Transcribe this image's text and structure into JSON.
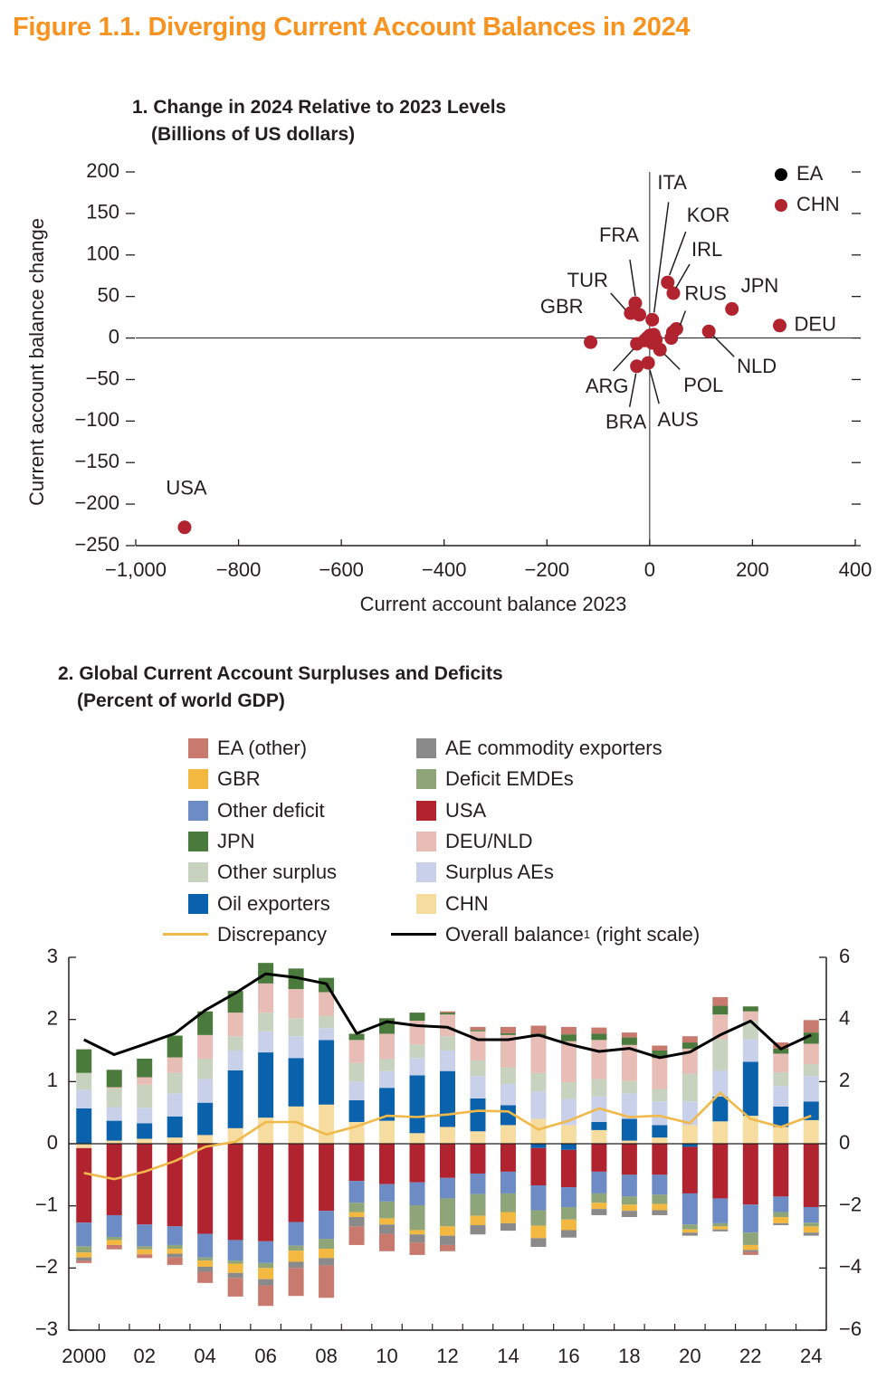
{
  "figure_title": "Figure 1.1. Diverging Current Account Balances in 2024",
  "colors": {
    "title": "#f7931e",
    "ea": "#000000",
    "chn_marker": "#b1232f",
    "EA (other)": "#c97a6e",
    "GBR": "#f2b840",
    "Other deficit": "#6d8cc6",
    "JPN": "#4a7a3c",
    "Other surplus": "#c8d3bf",
    "Oil exporters": "#0a62ac",
    "AE commodity exporters": "#8a8a8a",
    "Deficit EMDEs": "#8ea57a",
    "USA": "#b1232f",
    "DEU/NLD": "#e8bdb5",
    "Surplus AEs": "#c9d1ea",
    "CHN": "#f7dca0",
    "Discrepancy": "#f0b94a",
    "Overall balance": "#000000"
  },
  "panel1": {
    "title_line1": "1. Change in 2024 Relative to 2023 Levels",
    "title_line2": "(Billions of US dollars)"
  },
  "panel2": {
    "title_line1": "2. Global Current Account Surpluses and Deficits",
    "title_line2": "(Percent of world GDP)",
    "legend": [
      {
        "label": "EA (other)",
        "kind": "box"
      },
      {
        "label": "AE commodity exporters",
        "kind": "box"
      },
      {
        "label": "GBR",
        "kind": "box"
      },
      {
        "label": "Deficit EMDEs",
        "kind": "box"
      },
      {
        "label": "Other deficit",
        "kind": "box"
      },
      {
        "label": "USA",
        "kind": "box"
      },
      {
        "label": "JPN",
        "kind": "box"
      },
      {
        "label": "DEU/NLD",
        "kind": "box"
      },
      {
        "label": "Other surplus",
        "kind": "box"
      },
      {
        "label": "Surplus AEs",
        "kind": "box"
      },
      {
        "label": "Oil exporters",
        "kind": "box"
      },
      {
        "label": "CHN",
        "kind": "box"
      },
      {
        "label": "Discrepancy",
        "kind": "line"
      },
      {
        "label": "Overall balance",
        "kind": "line",
        "superscript": "1",
        "suffix": " (right scale)"
      }
    ]
  },
  "chart_data": [
    {
      "type": "scatter",
      "title": "1. Change in 2024 Relative to 2023 Levels",
      "subtitle": "(Billions of US dollars)",
      "xlabel": "Current account balance 2023",
      "ylabel": "Current account balance change",
      "xlim": [
        -1000,
        400
      ],
      "ylim": [
        -250,
        200
      ],
      "xticks": [
        -1000,
        -800,
        -600,
        -400,
        -200,
        0,
        200,
        400
      ],
      "xtick_labels": [
        "−1,000",
        "−800",
        "−600",
        "−400",
        "−200",
        "0",
        "200",
        "400"
      ],
      "yticks": [
        200,
        150,
        100,
        50,
        0,
        -50,
        -100,
        -150,
        -200,
        -250
      ],
      "ytick_labels": [
        "200",
        "150",
        "100",
        "50",
        "0",
        "−50",
        "−100",
        "−150",
        "−200",
        "−250"
      ],
      "legend": [
        "EA",
        "CHN"
      ],
      "legend_position": "top-right",
      "points": [
        {
          "label": "USA",
          "x": -905,
          "y": -228
        },
        {
          "label": "GBR",
          "x": -115,
          "y": -5
        },
        {
          "label": "FRA",
          "x": -28,
          "y": 42
        },
        {
          "label": "TUR",
          "x": -37,
          "y": 30
        },
        {
          "label": "ITA",
          "x": 5,
          "y": 22
        },
        {
          "label": "KOR",
          "x": 35,
          "y": 67
        },
        {
          "label": "IRL",
          "x": 46,
          "y": 54
        },
        {
          "label": "RUS",
          "x": 52,
          "y": 11
        },
        {
          "label": "JPN",
          "x": 160,
          "y": 35
        },
        {
          "label": "DEU",
          "x": 253,
          "y": 15
        },
        {
          "label": "NLD",
          "x": 115,
          "y": 8
        },
        {
          "label": "POL",
          "x": 20,
          "y": -14
        },
        {
          "label": "ARG",
          "x": -25,
          "y": -7
        },
        {
          "label": "BRA",
          "x": -25,
          "y": -34
        },
        {
          "label": "AUS",
          "x": -3,
          "y": -30
        },
        {
          "label": "",
          "x": -20,
          "y": 28
        },
        {
          "label": "",
          "x": -10,
          "y": -3
        },
        {
          "label": "",
          "x": 0,
          "y": 3
        },
        {
          "label": "",
          "x": 8,
          "y": 4
        },
        {
          "label": "",
          "x": 12,
          "y": -2
        },
        {
          "label": "",
          "x": 42,
          "y": 0
        },
        {
          "label": "",
          "x": 45,
          "y": 7
        },
        {
          "label": "",
          "x": 5,
          "y": -6
        },
        {
          "label": "",
          "x": -5,
          "y": 0
        }
      ]
    },
    {
      "type": "bar",
      "stacked": true,
      "title": "2. Global Current Account Surpluses and Deficits",
      "subtitle": "(Percent of world GDP)",
      "categories": [
        "2000",
        "01",
        "02",
        "03",
        "04",
        "05",
        "06",
        "07",
        "08",
        "09",
        "10",
        "11",
        "12",
        "13",
        "14",
        "15",
        "16",
        "17",
        "18",
        "19",
        "20",
        "21",
        "22",
        "23",
        "24"
      ],
      "x_tick_labels": [
        "2000",
        "02",
        "04",
        "06",
        "08",
        "10",
        "12",
        "14",
        "16",
        "18",
        "20",
        "22",
        "24"
      ],
      "ylim_left": [
        -3,
        3
      ],
      "yticks_left_labels": [
        "3",
        "2",
        "1",
        "0",
        "−1",
        "−2",
        "−3"
      ],
      "ylim_right": [
        -6,
        6
      ],
      "yticks_right_labels": [
        "6",
        "4",
        "2",
        "0",
        "−2",
        "−4",
        "−6"
      ],
      "positive_series": [
        {
          "name": "CHN",
          "values": [
            -0.07,
            0.05,
            0.08,
            0.1,
            0.14,
            0.25,
            0.42,
            0.6,
            0.63,
            0.35,
            0.37,
            0.17,
            0.27,
            0.2,
            0.3,
            0.4,
            0.3,
            0.22,
            0.05,
            0.1,
            0.3,
            0.36,
            0.45,
            0.27,
            0.38
          ]
        },
        {
          "name": "Oil exporters",
          "values": [
            0.57,
            0.32,
            0.25,
            0.34,
            0.52,
            0.93,
            1.05,
            0.78,
            1.04,
            0.35,
            0.53,
            0.93,
            0.9,
            0.53,
            0.32,
            -0.07,
            -0.1,
            0.13,
            0.35,
            0.2,
            -0.05,
            0.4,
            0.87,
            0.33,
            0.3
          ]
        },
        {
          "name": "Surplus AEs",
          "values": [
            0.3,
            0.22,
            0.25,
            0.37,
            0.38,
            0.32,
            0.34,
            0.35,
            0.19,
            0.3,
            0.27,
            0.28,
            0.33,
            0.36,
            0.34,
            0.44,
            0.42,
            0.41,
            0.41,
            0.38,
            0.38,
            0.42,
            0.36,
            0.33,
            0.41
          ]
        },
        {
          "name": "Other surplus",
          "values": [
            0.27,
            0.3,
            0.37,
            0.33,
            0.33,
            0.23,
            0.3,
            0.29,
            0.2,
            0.3,
            0.2,
            0.22,
            0.23,
            0.25,
            0.27,
            0.3,
            0.27,
            0.28,
            0.2,
            0.2,
            0.45,
            0.5,
            0.3,
            0.22,
            0.19
          ]
        },
        {
          "name": "DEU/NLD",
          "values": [
            0,
            0.02,
            0.12,
            0.25,
            0.38,
            0.38,
            0.47,
            0.47,
            0.38,
            0.37,
            0.4,
            0.38,
            0.35,
            0.47,
            0.52,
            0.58,
            0.66,
            0.63,
            0.58,
            0.5,
            0.4,
            0.4,
            0.15,
            0.3,
            0.33
          ]
        },
        {
          "name": "JPN",
          "values": [
            0.38,
            0.28,
            0.3,
            0.35,
            0.38,
            0.35,
            0.33,
            0.33,
            0.23,
            0.1,
            0.25,
            0.13,
            0.03,
            0.02,
            0.03,
            0.05,
            0.11,
            0.1,
            0.12,
            0.12,
            0.1,
            0.14,
            0.08,
            0.08,
            0.18
          ]
        },
        {
          "name": "EA (other)",
          "values": [
            0,
            0,
            0,
            0,
            0,
            0,
            0,
            0,
            0,
            0,
            0,
            0,
            0.02,
            0.05,
            0.1,
            0.13,
            0.12,
            0.1,
            0.08,
            0.08,
            0.1,
            0.14,
            0.0,
            0.1,
            0.2
          ]
        }
      ],
      "negative_series": [
        {
          "name": "USA",
          "values": [
            -1.2,
            -1.15,
            -1.3,
            -1.33,
            -1.45,
            -1.55,
            -1.57,
            -1.26,
            -1.08,
            -0.6,
            -0.65,
            -0.62,
            -0.55,
            -0.48,
            -0.45,
            -0.6,
            -0.6,
            -0.45,
            -0.5,
            -0.5,
            -0.75,
            -0.88,
            -0.98,
            -0.85,
            -1.02
          ]
        },
        {
          "name": "Other deficit",
          "values": [
            -0.38,
            -0.35,
            -0.35,
            -0.3,
            -0.38,
            -0.33,
            -0.35,
            -0.38,
            -0.45,
            -0.35,
            -0.28,
            -0.37,
            -0.33,
            -0.33,
            -0.35,
            -0.4,
            -0.32,
            -0.35,
            -0.35,
            -0.32,
            -0.5,
            -0.4,
            -0.45,
            -0.25,
            -0.25
          ]
        },
        {
          "name": "Deficit EMDEs",
          "values": [
            -0.1,
            -0.05,
            -0.05,
            -0.06,
            -0.05,
            -0.05,
            -0.08,
            -0.08,
            -0.16,
            -0.15,
            -0.27,
            -0.4,
            -0.45,
            -0.35,
            -0.3,
            -0.25,
            -0.2,
            -0.15,
            -0.13,
            -0.15,
            -0.08,
            -0.05,
            -0.2,
            -0.08,
            -0.06
          ]
        },
        {
          "name": "GBR",
          "values": [
            -0.08,
            -0.08,
            -0.08,
            -0.08,
            -0.1,
            -0.15,
            -0.18,
            -0.18,
            -0.15,
            -0.08,
            -0.1,
            -0.07,
            -0.15,
            -0.15,
            -0.18,
            -0.2,
            -0.17,
            -0.1,
            -0.1,
            -0.1,
            -0.05,
            -0.05,
            -0.08,
            -0.1,
            -0.1
          ]
        },
        {
          "name": "AE commodity exporters",
          "values": [
            -0.05,
            0,
            0,
            -0.06,
            -0.08,
            -0.08,
            -0.1,
            -0.1,
            -0.12,
            -0.15,
            -0.15,
            -0.13,
            -0.15,
            -0.15,
            -0.12,
            -0.14,
            -0.12,
            -0.1,
            -0.1,
            -0.08,
            -0.05,
            -0.03,
            -0.03,
            -0.03,
            -0.05
          ]
        },
        {
          "name": "EA (other)",
          "values": [
            -0.04,
            -0.07,
            -0.06,
            -0.12,
            -0.18,
            -0.3,
            -0.33,
            -0.45,
            -0.52,
            -0.3,
            -0.28,
            -0.2,
            -0.1,
            0,
            0,
            0,
            0,
            0,
            0,
            0,
            0,
            0,
            -0.05,
            0,
            0
          ]
        }
      ],
      "lines": [
        {
          "name": "Discrepancy",
          "axis": "left",
          "values": [
            -0.47,
            -0.57,
            -0.45,
            -0.28,
            -0.05,
            0.03,
            0.35,
            0.35,
            0.15,
            0.28,
            0.45,
            0.43,
            0.47,
            0.53,
            0.52,
            0.23,
            0.37,
            0.57,
            0.43,
            0.45,
            0.33,
            0.82,
            0.4,
            0.27,
            0.45
          ]
        },
        {
          "name": "Overall balance (right scale)",
          "axis": "right",
          "values": [
            3.35,
            2.87,
            3.2,
            3.55,
            4.3,
            4.85,
            5.47,
            5.35,
            5.15,
            3.55,
            3.93,
            3.8,
            3.75,
            3.35,
            3.35,
            3.5,
            3.2,
            2.97,
            3.07,
            2.77,
            2.95,
            3.5,
            3.95,
            3.05,
            3.5
          ]
        }
      ]
    }
  ]
}
